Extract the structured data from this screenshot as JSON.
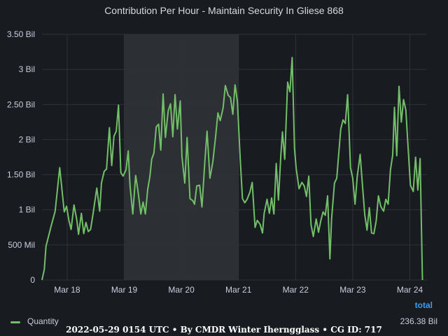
{
  "chart_data": {
    "type": "line",
    "title": "Contribution Per Hour - Maintain Security In Gliese 868",
    "y_ticks": [
      "0",
      "500 Mil",
      "1 Bil",
      "1.50 Bil",
      "2 Bil",
      "2.50 Bil",
      "3 Bil",
      "3.50 Bil"
    ],
    "ylim": [
      0,
      3.5
    ],
    "y_unit": "Bil",
    "x_ticks": [
      "Mar 18",
      "Mar 19",
      "Mar 20",
      "Mar 21",
      "Mar 22",
      "Mar 23",
      "Mar 24"
    ],
    "xlim_days": [
      17.56,
      24.3
    ],
    "shaded_region_days": [
      19.0,
      21.0
    ],
    "grid": true,
    "legend_position": "bottom",
    "series": [
      {
        "name": "Quantity",
        "color": "#73bf69",
        "points": [
          [
            17.56,
            0
          ],
          [
            17.6,
            0.15
          ],
          [
            17.63,
            0.48
          ],
          [
            17.72,
            0.77
          ],
          [
            17.79,
            0.98
          ],
          [
            17.87,
            1.6
          ],
          [
            17.95,
            0.97
          ],
          [
            17.99,
            1.05
          ],
          [
            18.03,
            0.85
          ],
          [
            18.07,
            0.72
          ],
          [
            18.12,
            1.07
          ],
          [
            18.17,
            0.85
          ],
          [
            18.2,
            0.65
          ],
          [
            18.25,
            0.95
          ],
          [
            18.29,
            0.66
          ],
          [
            18.33,
            0.82
          ],
          [
            18.37,
            0.69
          ],
          [
            18.41,
            0.72
          ],
          [
            18.45,
            0.92
          ],
          [
            18.52,
            1.31
          ],
          [
            18.57,
            0.98
          ],
          [
            18.6,
            1.38
          ],
          [
            18.65,
            1.55
          ],
          [
            18.69,
            1.58
          ],
          [
            18.74,
            2.17
          ],
          [
            18.78,
            1.63
          ],
          [
            18.82,
            2.05
          ],
          [
            18.86,
            2.12
          ],
          [
            18.9,
            2.49
          ],
          [
            18.94,
            1.53
          ],
          [
            18.98,
            1.48
          ],
          [
            19.03,
            1.57
          ],
          [
            19.07,
            1.84
          ],
          [
            19.1,
            1.35
          ],
          [
            19.15,
            0.94
          ],
          [
            19.2,
            1.49
          ],
          [
            19.24,
            1.27
          ],
          [
            19.29,
            0.94
          ],
          [
            19.33,
            1.11
          ],
          [
            19.37,
            0.94
          ],
          [
            19.41,
            1.29
          ],
          [
            19.45,
            1.48
          ],
          [
            19.48,
            1.72
          ],
          [
            19.52,
            1.81
          ],
          [
            19.56,
            2.18
          ],
          [
            19.6,
            2.22
          ],
          [
            19.64,
            1.85
          ],
          [
            19.68,
            2.65
          ],
          [
            19.72,
            2.03
          ],
          [
            19.77,
            2.41
          ],
          [
            19.81,
            2.51
          ],
          [
            19.85,
            2.04
          ],
          [
            19.89,
            2.64
          ],
          [
            19.93,
            2.15
          ],
          [
            19.98,
            2.55
          ],
          [
            20.01,
            1.76
          ],
          [
            20.06,
            1.38
          ],
          [
            20.1,
            2.03
          ],
          [
            20.15,
            1.16
          ],
          [
            20.2,
            1.13
          ],
          [
            20.23,
            1.08
          ],
          [
            20.27,
            1.34
          ],
          [
            20.32,
            1.35
          ],
          [
            20.36,
            1.04
          ],
          [
            20.41,
            1.68
          ],
          [
            20.45,
            2.12
          ],
          [
            20.5,
            1.45
          ],
          [
            20.55,
            1.68
          ],
          [
            20.6,
            2.05
          ],
          [
            20.64,
            2.38
          ],
          [
            20.68,
            2.27
          ],
          [
            20.73,
            2.45
          ],
          [
            20.77,
            2.77
          ],
          [
            20.82,
            2.63
          ],
          [
            20.86,
            2.6
          ],
          [
            20.9,
            2.36
          ],
          [
            20.94,
            2.78
          ],
          [
            20.98,
            2.55
          ],
          [
            21.03,
            1.72
          ],
          [
            21.07,
            1.16
          ],
          [
            21.11,
            1.1
          ],
          [
            21.15,
            1.15
          ],
          [
            21.2,
            1.25
          ],
          [
            21.24,
            1.39
          ],
          [
            21.29,
            0.75
          ],
          [
            21.33,
            0.85
          ],
          [
            21.38,
            0.79
          ],
          [
            21.42,
            0.67
          ],
          [
            21.45,
            0.95
          ],
          [
            21.5,
            1.15
          ],
          [
            21.54,
            0.95
          ],
          [
            21.58,
            1.17
          ],
          [
            21.62,
            0.94
          ],
          [
            21.66,
            1.66
          ],
          [
            21.7,
            1.14
          ],
          [
            21.74,
            1.76
          ],
          [
            21.77,
            2.11
          ],
          [
            21.81,
            1.72
          ],
          [
            21.86,
            2.82
          ],
          [
            21.9,
            2.68
          ],
          [
            21.94,
            3.17
          ],
          [
            21.98,
            1.88
          ],
          [
            22.01,
            1.59
          ],
          [
            22.06,
            1.3
          ],
          [
            22.11,
            1.39
          ],
          [
            22.15,
            1.34
          ],
          [
            22.19,
            1.19
          ],
          [
            22.23,
            1.48
          ],
          [
            22.27,
            0.79
          ],
          [
            22.31,
            0.62
          ],
          [
            22.36,
            0.87
          ],
          [
            22.4,
            0.68
          ],
          [
            22.44,
            0.84
          ],
          [
            22.48,
            0.97
          ],
          [
            22.52,
            0.92
          ],
          [
            22.56,
            1.2
          ],
          [
            22.6,
            0.3
          ],
          [
            22.63,
            0.87
          ],
          [
            22.68,
            1.38
          ],
          [
            22.72,
            1.45
          ],
          [
            22.75,
            1.75
          ],
          [
            22.79,
            2.15
          ],
          [
            22.83,
            2.28
          ],
          [
            22.87,
            2.23
          ],
          [
            22.91,
            2.64
          ],
          [
            22.96,
            1.6
          ],
          [
            23.0,
            1.45
          ],
          [
            23.04,
            1.08
          ],
          [
            23.08,
            1.48
          ],
          [
            23.13,
            1.79
          ],
          [
            23.17,
            1.35
          ],
          [
            23.21,
            0.93
          ],
          [
            23.25,
            0.71
          ],
          [
            23.29,
            1.03
          ],
          [
            23.33,
            0.67
          ],
          [
            23.37,
            0.66
          ],
          [
            23.41,
            0.84
          ],
          [
            23.45,
            1.2
          ],
          [
            23.49,
            1.05
          ],
          [
            23.54,
            0.98
          ],
          [
            23.58,
            1.15
          ],
          [
            23.62,
            1.08
          ],
          [
            23.66,
            1.57
          ],
          [
            23.7,
            1.78
          ],
          [
            23.73,
            2.46
          ],
          [
            23.77,
            1.77
          ],
          [
            23.81,
            2.76
          ],
          [
            23.85,
            2.25
          ],
          [
            23.89,
            2.57
          ],
          [
            23.93,
            2.42
          ],
          [
            23.97,
            1.87
          ],
          [
            24.01,
            1.35
          ],
          [
            24.06,
            1.26
          ],
          [
            24.1,
            1.75
          ],
          [
            24.14,
            1.28
          ],
          [
            24.18,
            1.73
          ],
          [
            24.22,
            0
          ]
        ]
      }
    ],
    "total_header": "total",
    "total_value": "236.38 Bil"
  },
  "footer": "2022-05-29 0154 UTC • By CMDR Winter Iherngglass • CG ID: 717"
}
